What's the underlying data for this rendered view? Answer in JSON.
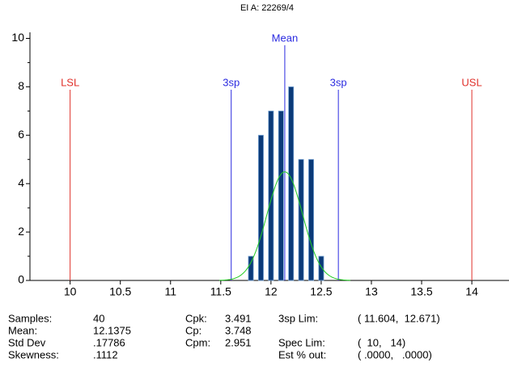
{
  "chart_data": {
    "type": "histogram",
    "title": "EI A: 22269/4",
    "bins": [
      11.775,
      11.825,
      11.875,
      11.925,
      11.975,
      12.025,
      12.075,
      12.125,
      12.175,
      12.225,
      12.275,
      12.325,
      12.375,
      12.425,
      12.475,
      12.525
    ],
    "values": [
      1,
      0,
      6,
      0,
      7,
      0,
      7,
      0,
      8,
      0,
      5,
      0,
      5,
      0,
      1
    ],
    "color": "#0b3a78",
    "curve_color": "#22cc22",
    "xlim": [
      9.6,
      14.37
    ],
    "xticks": [
      10,
      10.5,
      11,
      11.5,
      12,
      12.5,
      13,
      13.5,
      14
    ],
    "ylim": [
      0,
      10.25
    ],
    "yticks": [
      0,
      2,
      4,
      6,
      8,
      10
    ],
    "ref_lines": [
      {
        "label": "LSL",
        "value": 10,
        "color": "#e0302a"
      },
      {
        "label": "3sp",
        "value": 11.604,
        "color": "#2a2ae0"
      },
      {
        "label": "Mean",
        "value": 12.1375,
        "color": "#2a2ae0"
      },
      {
        "label": "3sp",
        "value": 12.671,
        "color": "#2a2ae0"
      },
      {
        "label": "USL",
        "value": 14,
        "color": "#e0302a"
      }
    ],
    "stats": [
      {
        "label": "Samples:",
        "value": 40
      },
      {
        "label": "Mean:",
        "value": 12.1375
      },
      {
        "label": "Std Dev",
        "value": {
          "value": 0.17786,
          "label": ".17786"
        }
      },
      {
        "label": "Skewness:",
        "value": {
          "value": 0.1112,
          "label": ".1112"
        }
      },
      {
        "label": "Cpk:",
        "value": 3.491
      },
      {
        "label": "Cp:",
        "value": 3.748
      },
      {
        "label": "Cpm:",
        "value": 2.951
      },
      {
        "label": "3sp Lim:",
        "value": {
          "value": [
            11.604,
            12.671
          ],
          "label": "( 11.604,  12.671)"
        }
      },
      {
        "label": "Spec Lim:",
        "value": {
          "value": [
            10,
            14
          ],
          "label": "(  10,   14)"
        }
      },
      {
        "label": "Est % out:",
        "value": "( .0000,   .0000)"
      }
    ]
  }
}
